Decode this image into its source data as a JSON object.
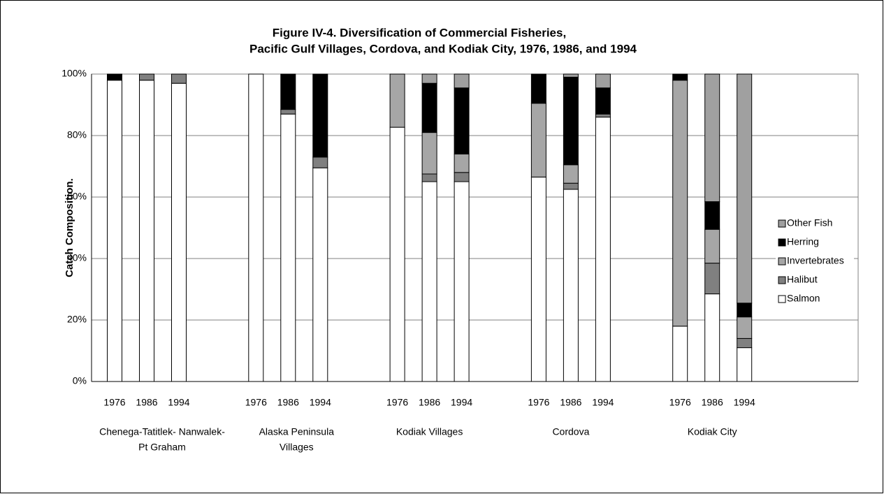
{
  "chart_data": {
    "type": "stacked_bar",
    "title": [
      "Figure IV-4. Diversification of Commercial Fisheries,",
      "Pacific Gulf Villages, Cordova, and Kodiak City, 1976, 1986, and 1994"
    ],
    "y_label": "Catch Composition.",
    "groups": [
      [
        "Chenega-Tatitlek- Nanwalek-",
        "Pt Graham"
      ],
      [
        "Alaska Peninsula",
        "Villages"
      ],
      [
        "Kodiak Villages"
      ],
      [
        "Cordova"
      ],
      [
        "Kodiak City"
      ]
    ],
    "categories": [
      "1976",
      "1986",
      "1994",
      "1976",
      "1986",
      "1994",
      "1976",
      "1986",
      "1994",
      "1976",
      "1986",
      "1994",
      "1976",
      "1986",
      "1994"
    ],
    "series": [
      {
        "name": "Salmon",
        "color": "#ffffff",
        "values": [
          98,
          98,
          97,
          100,
          87,
          69.5,
          82.7,
          65,
          65,
          66.5,
          62.5,
          86,
          18,
          28.5,
          11
        ]
      },
      {
        "name": "Halibut",
        "color": "#808080",
        "values": [
          0,
          2,
          3,
          0,
          1.5,
          3.5,
          0,
          2.5,
          3,
          0,
          2,
          1,
          0,
          10,
          3
        ]
      },
      {
        "name": "Invertebrates",
        "color": "#a6a6a6",
        "values": [
          0,
          0,
          0,
          0,
          0,
          0,
          17.3,
          13.5,
          6,
          24,
          6,
          0,
          80,
          11,
          7
        ]
      },
      {
        "name": "Herring",
        "color": "#000000",
        "values": [
          2,
          0,
          0,
          0,
          11.5,
          27,
          0,
          16,
          21.5,
          9.5,
          28.5,
          8.5,
          2,
          9,
          4.5
        ]
      },
      {
        "name": "Other Fish",
        "color": "#a0a0a0",
        "values": [
          0,
          0,
          0,
          0,
          0,
          0,
          0,
          3,
          4.5,
          0,
          1,
          4.5,
          0,
          41.5,
          74.5
        ]
      }
    ],
    "ylim": [
      0,
      100
    ],
    "yticks": [
      {
        "value": 0,
        "label": "0%"
      },
      {
        "value": 20,
        "label": "20%"
      },
      {
        "value": 40,
        "label": "40%"
      },
      {
        "value": 60,
        "label": "60%"
      },
      {
        "value": 80,
        "label": "80%"
      },
      {
        "value": 100,
        "label": "100%"
      }
    ],
    "grid": true,
    "legend": "right"
  }
}
